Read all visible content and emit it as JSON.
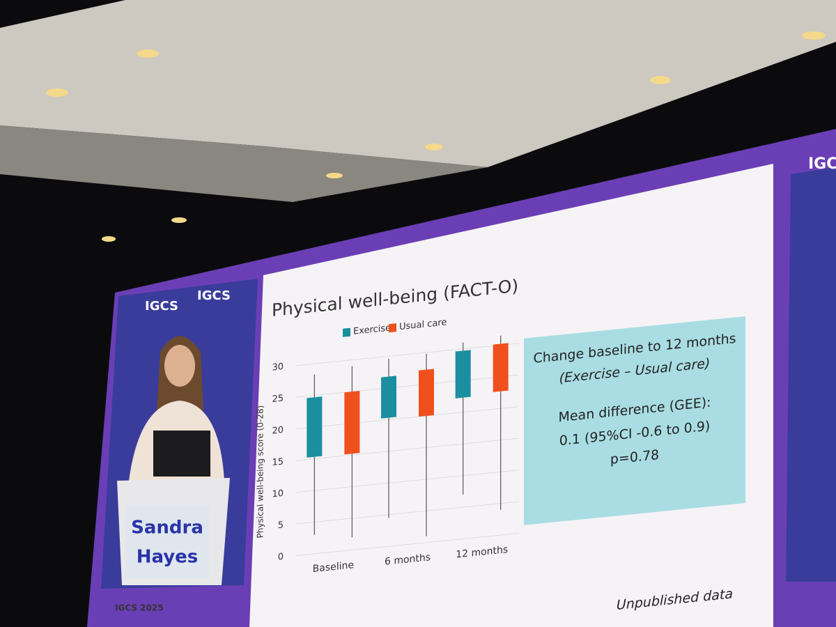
{
  "speaker": {
    "name_line1": "Sandra",
    "name_line2": "Hayes",
    "logo": "IGCS",
    "event": "IGCS 2025"
  },
  "note": "Unpublished data",
  "summary": {
    "line1": "Change baseline to 12 months",
    "line2": "(Exercise – Usual care)",
    "line3": "Mean difference (GEE):",
    "line4": "0.1 (95%CI -0.6 to 0.9)",
    "line5": "p=0.78"
  },
  "chart_data": {
    "type": "box",
    "title": "Physical well-being (FACT-O)",
    "y_label": "Physical well-being score (0-28)",
    "categories": [
      "Baseline",
      "6 months",
      "12 months"
    ],
    "series": [
      {
        "name": "Exercise",
        "color": "#1b8fa0",
        "low": [
          3,
          4.5,
          7
        ],
        "q1": [
          15.3,
          20.3,
          22.3
        ],
        "q3": [
          24.7,
          26.8,
          29.7
        ],
        "high": [
          28.3,
          29.6,
          31
        ]
      },
      {
        "name": "Usual care",
        "color": "#f0501e",
        "low": [
          2,
          1,
          4
        ],
        "q1": [
          15.2,
          20,
          22.7
        ],
        "q3": [
          25,
          27.3,
          30.2
        ],
        "high": [
          29,
          29.8,
          31.5
        ]
      }
    ],
    "ylim": [
      0,
      32
    ],
    "yticks": [
      0,
      5,
      10,
      15,
      20,
      25,
      30
    ],
    "grid": true
  }
}
